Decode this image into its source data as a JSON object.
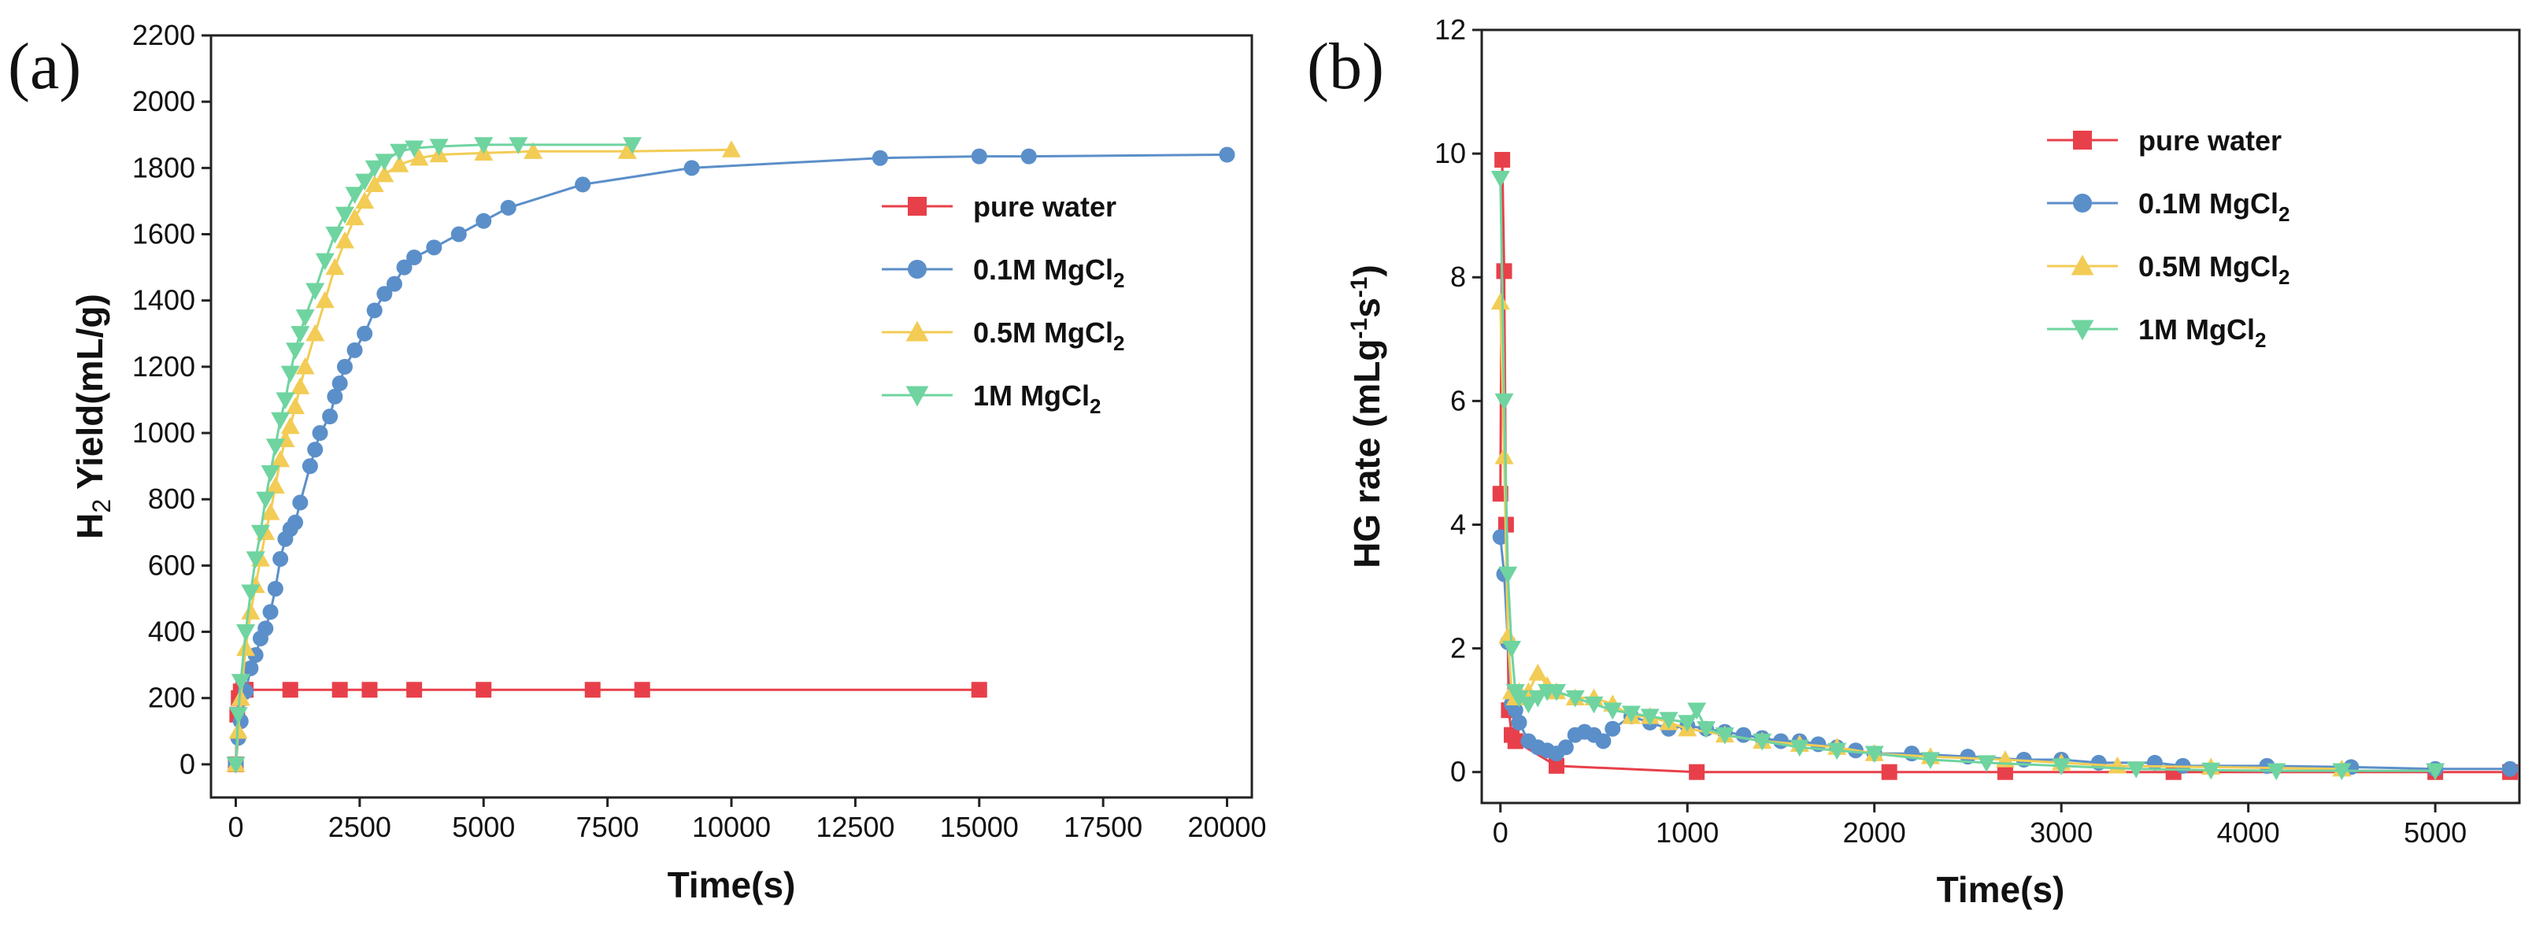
{
  "chart_data": [
    {
      "type": "line",
      "panel_label": "(a)",
      "title": "",
      "xlabel": "Time(s)",
      "ylabel": "H₂ Yield(mL/g)",
      "ylabel_parts": {
        "main": "H",
        "sub": "2",
        "rest": " Yield(mL/g)"
      },
      "xlim": [
        -500,
        20500
      ],
      "ylim": [
        -100,
        2200
      ],
      "xticks": [
        0,
        2500,
        5000,
        7500,
        10000,
        12500,
        15000,
        17500,
        20000
      ],
      "yticks": [
        0,
        200,
        400,
        600,
        800,
        1000,
        1200,
        1400,
        1600,
        1800,
        2000,
        2200
      ],
      "legend_position": "center-right",
      "grid": false,
      "series": [
        {
          "name": "pure water",
          "label_main": "pure water",
          "label_sub": "",
          "color": "#e8404a",
          "marker": "square",
          "x": [
            0,
            30,
            60,
            100,
            150,
            200,
            1100,
            2100,
            2700,
            3600,
            5000,
            7200,
            8200,
            15000
          ],
          "y": [
            0,
            150,
            200,
            220,
            225,
            225,
            225,
            225,
            225,
            225,
            225,
            225,
            225,
            225
          ]
        },
        {
          "name": "0.1M MgCl2",
          "label_main": "0.1M MgCl",
          "label_sub": "2",
          "color": "#5b8fc9",
          "marker": "circle",
          "x": [
            0,
            50,
            100,
            200,
            300,
            400,
            500,
            600,
            700,
            800,
            900,
            1000,
            1100,
            1200,
            1300,
            1500,
            1600,
            1700,
            1900,
            2000,
            2100,
            2200,
            2400,
            2600,
            2800,
            3000,
            3200,
            3400,
            3600,
            4000,
            4500,
            5000,
            5500,
            7000,
            9200,
            13000,
            15000,
            16000,
            20000
          ],
          "y": [
            0,
            80,
            130,
            220,
            290,
            330,
            380,
            410,
            460,
            530,
            620,
            680,
            710,
            730,
            790,
            900,
            950,
            1000,
            1050,
            1110,
            1150,
            1200,
            1250,
            1300,
            1370,
            1420,
            1450,
            1500,
            1530,
            1560,
            1600,
            1640,
            1680,
            1750,
            1800,
            1830,
            1835,
            1835,
            1840
          ]
        },
        {
          "name": "0.5M MgCl2",
          "label_main": "0.5M MgCl",
          "label_sub": "2",
          "color": "#f2cc55",
          "marker": "triangle-up",
          "x": [
            0,
            50,
            100,
            200,
            300,
            400,
            500,
            600,
            700,
            800,
            900,
            1000,
            1100,
            1200,
            1300,
            1400,
            1600,
            1800,
            2000,
            2200,
            2400,
            2600,
            2800,
            3000,
            3300,
            3700,
            4100,
            5000,
            6000,
            7900,
            10000
          ],
          "y": [
            0,
            100,
            200,
            350,
            460,
            540,
            620,
            700,
            760,
            840,
            920,
            980,
            1020,
            1080,
            1140,
            1200,
            1300,
            1400,
            1500,
            1580,
            1650,
            1700,
            1750,
            1780,
            1810,
            1830,
            1840,
            1845,
            1850,
            1850,
            1855
          ]
        },
        {
          "name": "1M MgCl2",
          "label_main": "1M MgCl",
          "label_sub": "2",
          "color": "#6fd4a0",
          "marker": "triangle-down",
          "x": [
            0,
            50,
            100,
            200,
            300,
            400,
            500,
            600,
            700,
            800,
            900,
            1000,
            1100,
            1200,
            1300,
            1400,
            1600,
            1800,
            2000,
            2200,
            2400,
            2600,
            2800,
            3000,
            3300,
            3600,
            4100,
            5000,
            5700,
            8000
          ],
          "y": [
            0,
            150,
            250,
            400,
            520,
            620,
            700,
            800,
            880,
            960,
            1040,
            1100,
            1180,
            1250,
            1300,
            1350,
            1430,
            1520,
            1600,
            1660,
            1720,
            1760,
            1800,
            1820,
            1850,
            1860,
            1865,
            1870,
            1870,
            1870
          ]
        }
      ]
    },
    {
      "type": "line",
      "panel_label": "(b)",
      "title": "",
      "xlabel": "Time(s)",
      "ylabel": "HG rate (mLg⁻¹s⁻¹)",
      "ylabel_parts": {
        "main": "HG rate (mLg",
        "sup1": "-1",
        "mid": "s",
        "sup2": "-1",
        "end": ")"
      },
      "xlim": [
        -100,
        5450
      ],
      "ylim": [
        -0.5,
        12
      ],
      "xticks": [
        0,
        1000,
        2000,
        3000,
        4000,
        5000
      ],
      "yticks": [
        0,
        2,
        4,
        6,
        8,
        10,
        12
      ],
      "legend_position": "top-right",
      "grid": false,
      "series": [
        {
          "name": "pure water",
          "label_main": "pure water",
          "label_sub": "",
          "color": "#e8404a",
          "marker": "square",
          "x": [
            0,
            10,
            20,
            30,
            45,
            60,
            80,
            300,
            1050,
            2080,
            2700,
            3600,
            5000,
            5400
          ],
          "y": [
            4.5,
            9.9,
            8.1,
            4.0,
            1.0,
            0.6,
            0.5,
            0.1,
            0.0,
            0.0,
            0.0,
            0.0,
            0.0,
            0.0
          ]
        },
        {
          "name": "0.1M MgCl2",
          "label_main": "0.1M MgCl",
          "label_sub": "2",
          "color": "#5b8fc9",
          "marker": "circle",
          "x": [
            0,
            20,
            40,
            60,
            80,
            100,
            150,
            200,
            250,
            300,
            350,
            400,
            450,
            500,
            550,
            600,
            700,
            800,
            900,
            1000,
            1100,
            1200,
            1300,
            1400,
            1500,
            1600,
            1700,
            1800,
            1900,
            2000,
            2200,
            2500,
            2800,
            3000,
            3200,
            3500,
            3650,
            4100,
            4550,
            5000,
            5400
          ],
          "y": [
            3.8,
            3.2,
            2.1,
            1.1,
            1.0,
            0.8,
            0.5,
            0.4,
            0.35,
            0.3,
            0.4,
            0.6,
            0.65,
            0.6,
            0.5,
            0.7,
            0.9,
            0.8,
            0.7,
            0.75,
            0.7,
            0.65,
            0.6,
            0.55,
            0.5,
            0.5,
            0.45,
            0.4,
            0.35,
            0.3,
            0.3,
            0.25,
            0.2,
            0.2,
            0.15,
            0.15,
            0.1,
            0.1,
            0.08,
            0.05,
            0.05
          ]
        },
        {
          "name": "0.5M MgCl2",
          "label_main": "0.5M MgCl",
          "label_sub": "2",
          "color": "#f2cc55",
          "marker": "triangle-up",
          "x": [
            0,
            20,
            40,
            60,
            80,
            100,
            150,
            200,
            250,
            300,
            400,
            500,
            600,
            700,
            800,
            900,
            1000,
            1200,
            1400,
            1600,
            1800,
            2000,
            2300,
            2700,
            3000,
            3300,
            3800,
            4500
          ],
          "y": [
            7.6,
            5.1,
            2.2,
            1.3,
            1.2,
            1.3,
            1.3,
            1.6,
            1.4,
            1.3,
            1.2,
            1.2,
            1.1,
            0.9,
            0.9,
            0.8,
            0.7,
            0.6,
            0.5,
            0.45,
            0.4,
            0.3,
            0.25,
            0.2,
            0.15,
            0.1,
            0.08,
            0.05
          ]
        },
        {
          "name": "1M MgCl2",
          "label_main": "1M MgCl",
          "label_sub": "2",
          "color": "#6fd4a0",
          "marker": "triangle-down",
          "x": [
            0,
            20,
            40,
            60,
            80,
            100,
            150,
            200,
            250,
            300,
            400,
            500,
            600,
            700,
            800,
            900,
            1000,
            1050,
            1100,
            1200,
            1400,
            1600,
            1800,
            2000,
            2300,
            2600,
            3000,
            3400,
            3800,
            4150,
            4500,
            5000
          ],
          "y": [
            9.6,
            6.0,
            3.2,
            2.0,
            1.3,
            1.2,
            1.1,
            1.2,
            1.3,
            1.3,
            1.2,
            1.1,
            1.0,
            0.95,
            0.9,
            0.85,
            0.8,
            1.0,
            0.7,
            0.6,
            0.5,
            0.4,
            0.35,
            0.3,
            0.2,
            0.15,
            0.1,
            0.05,
            0.03,
            0.02,
            0.02,
            0.02
          ]
        }
      ]
    }
  ]
}
